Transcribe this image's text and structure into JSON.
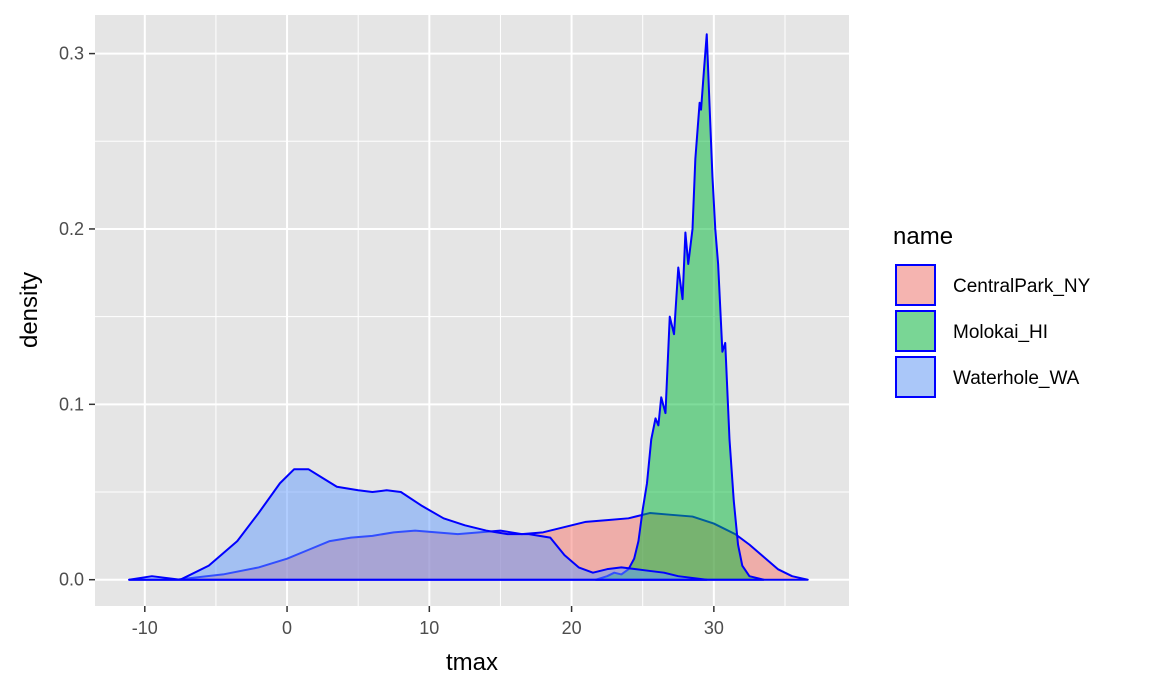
{
  "chart_data": {
    "type": "area",
    "xlabel": "tmax",
    "ylabel": "density",
    "xlim": [
      -13.5,
      39.5
    ],
    "ylim": [
      -0.015,
      0.322
    ],
    "x_ticks": [
      -10,
      0,
      10,
      20,
      30
    ],
    "x_tick_labels": [
      "-10",
      "0",
      "10",
      "20",
      "30"
    ],
    "y_ticks": [
      0.0,
      0.1,
      0.2,
      0.3
    ],
    "y_tick_labels": [
      "0.0",
      "0.1",
      "0.2",
      "0.3"
    ],
    "grid": true,
    "panel_background": "#e5e5e5",
    "outline_color": "#0000ff",
    "legend": {
      "title": "name",
      "position": "right"
    },
    "series": [
      {
        "name": "CentralPark_NY",
        "fill": "#f8766d",
        "points": [
          [
            -11.1,
            0.0
          ],
          [
            -7.8,
            0.0
          ],
          [
            -4.5,
            0.003
          ],
          [
            -2,
            0.007
          ],
          [
            0,
            0.012
          ],
          [
            1.5,
            0.017
          ],
          [
            3,
            0.022
          ],
          [
            4.5,
            0.024
          ],
          [
            6,
            0.025
          ],
          [
            7.5,
            0.027
          ],
          [
            9,
            0.028
          ],
          [
            10.5,
            0.027
          ],
          [
            12,
            0.026
          ],
          [
            13.5,
            0.027
          ],
          [
            15,
            0.028
          ],
          [
            16.5,
            0.026
          ],
          [
            18,
            0.027
          ],
          [
            19.5,
            0.03
          ],
          [
            21,
            0.033
          ],
          [
            22.5,
            0.034
          ],
          [
            24,
            0.035
          ],
          [
            25.5,
            0.038
          ],
          [
            27,
            0.037
          ],
          [
            28.5,
            0.036
          ],
          [
            30,
            0.032
          ],
          [
            31.5,
            0.026
          ],
          [
            32.5,
            0.02
          ],
          [
            33.5,
            0.013
          ],
          [
            34.5,
            0.006
          ],
          [
            35.5,
            0.002
          ],
          [
            36.6,
            0.0
          ]
        ]
      },
      {
        "name": "Molokai_HI",
        "fill": "#00ba38",
        "points": [
          [
            21.7,
            0.0
          ],
          [
            22.5,
            0.002
          ],
          [
            23.0,
            0.004
          ],
          [
            23.5,
            0.003
          ],
          [
            24.0,
            0.006
          ],
          [
            24.4,
            0.012
          ],
          [
            24.7,
            0.022
          ],
          [
            25.0,
            0.04
          ],
          [
            25.3,
            0.055
          ],
          [
            25.6,
            0.08
          ],
          [
            25.9,
            0.092
          ],
          [
            26.1,
            0.088
          ],
          [
            26.3,
            0.104
          ],
          [
            26.6,
            0.095
          ],
          [
            26.9,
            0.15
          ],
          [
            27.2,
            0.14
          ],
          [
            27.5,
            0.178
          ],
          [
            27.8,
            0.16
          ],
          [
            28.0,
            0.198
          ],
          [
            28.2,
            0.18
          ],
          [
            28.5,
            0.2
          ],
          [
            28.7,
            0.24
          ],
          [
            29.0,
            0.272
          ],
          [
            29.1,
            0.268
          ],
          [
            29.3,
            0.29
          ],
          [
            29.5,
            0.311
          ],
          [
            29.7,
            0.27
          ],
          [
            29.9,
            0.23
          ],
          [
            30.1,
            0.2
          ],
          [
            30.3,
            0.18
          ],
          [
            30.6,
            0.13
          ],
          [
            30.8,
            0.135
          ],
          [
            31.1,
            0.08
          ],
          [
            31.4,
            0.045
          ],
          [
            31.7,
            0.02
          ],
          [
            32.0,
            0.008
          ],
          [
            32.5,
            0.002
          ],
          [
            33.5,
            0.0
          ]
        ]
      },
      {
        "name": "Waterhole_WA",
        "fill": "#619cff",
        "points": [
          [
            -11.1,
            0.0
          ],
          [
            -9.5,
            0.002
          ],
          [
            -7.5,
            0.0
          ],
          [
            -5.5,
            0.008
          ],
          [
            -3.5,
            0.022
          ],
          [
            -2,
            0.038
          ],
          [
            -0.5,
            0.055
          ],
          [
            0.5,
            0.063
          ],
          [
            1.5,
            0.063
          ],
          [
            2.5,
            0.058
          ],
          [
            3.5,
            0.053
          ],
          [
            5,
            0.051
          ],
          [
            6,
            0.05
          ],
          [
            7,
            0.051
          ],
          [
            8,
            0.05
          ],
          [
            9.5,
            0.042
          ],
          [
            11,
            0.035
          ],
          [
            12.5,
            0.031
          ],
          [
            14,
            0.028
          ],
          [
            15.5,
            0.026
          ],
          [
            17,
            0.026
          ],
          [
            18.5,
            0.024
          ],
          [
            19.5,
            0.014
          ],
          [
            20.5,
            0.007
          ],
          [
            21.5,
            0.004
          ],
          [
            22.5,
            0.006
          ],
          [
            23.5,
            0.007
          ],
          [
            24.5,
            0.006
          ],
          [
            25.5,
            0.005
          ],
          [
            26.5,
            0.004
          ],
          [
            27.5,
            0.002
          ],
          [
            28.5,
            0.001
          ],
          [
            29.5,
            0.0
          ]
        ]
      }
    ]
  }
}
